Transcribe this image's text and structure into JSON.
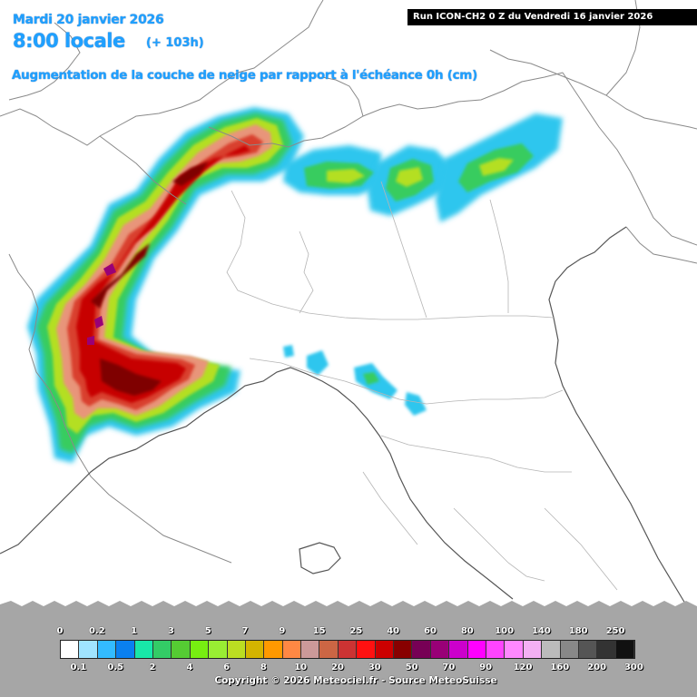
{
  "header": {
    "date": "Mardi 20 janvier 2026",
    "time": "8:00 locale",
    "offset": "(+ 103h)",
    "subtitle": "Augmentation de la couche de neige par rapport à l'échéance 0h (cm)",
    "run": "Run ICON-CH2 0 Z du Vendredi 16 janvier 2026"
  },
  "legend": {
    "top_labels": [
      "0",
      "0.2",
      "1",
      "3",
      "5",
      "7",
      "9",
      "15",
      "25",
      "40",
      "60",
      "80",
      "100",
      "140",
      "180",
      "250"
    ],
    "bottom_labels": [
      "0.1",
      "0.5",
      "2",
      "4",
      "6",
      "8",
      "10",
      "20",
      "30",
      "50",
      "70",
      "90",
      "120",
      "160",
      "200",
      "300"
    ],
    "colors": [
      "#ffffff",
      "#a0e4ff",
      "#33bbff",
      "#0a80f0",
      "#18e8a8",
      "#33cc66",
      "#55cc33",
      "#77ee11",
      "#99ee33",
      "#bbdd22",
      "#d4b400",
      "#ff9900",
      "#ff8844",
      "#cc9999",
      "#cc6644",
      "#cc3333",
      "#ff1111",
      "#cc0000",
      "#880000",
      "#770055",
      "#990077",
      "#cc00cc",
      "#ff00ff",
      "#ff44ff",
      "#ff88ff",
      "#f4b0f4",
      "#bbbbbb",
      "#888888",
      "#555555",
      "#333333",
      "#111111"
    ]
  },
  "footer": {
    "copyright": "Copyright © 2026 Meteociel.fr - Source MeteoSuisse"
  }
}
